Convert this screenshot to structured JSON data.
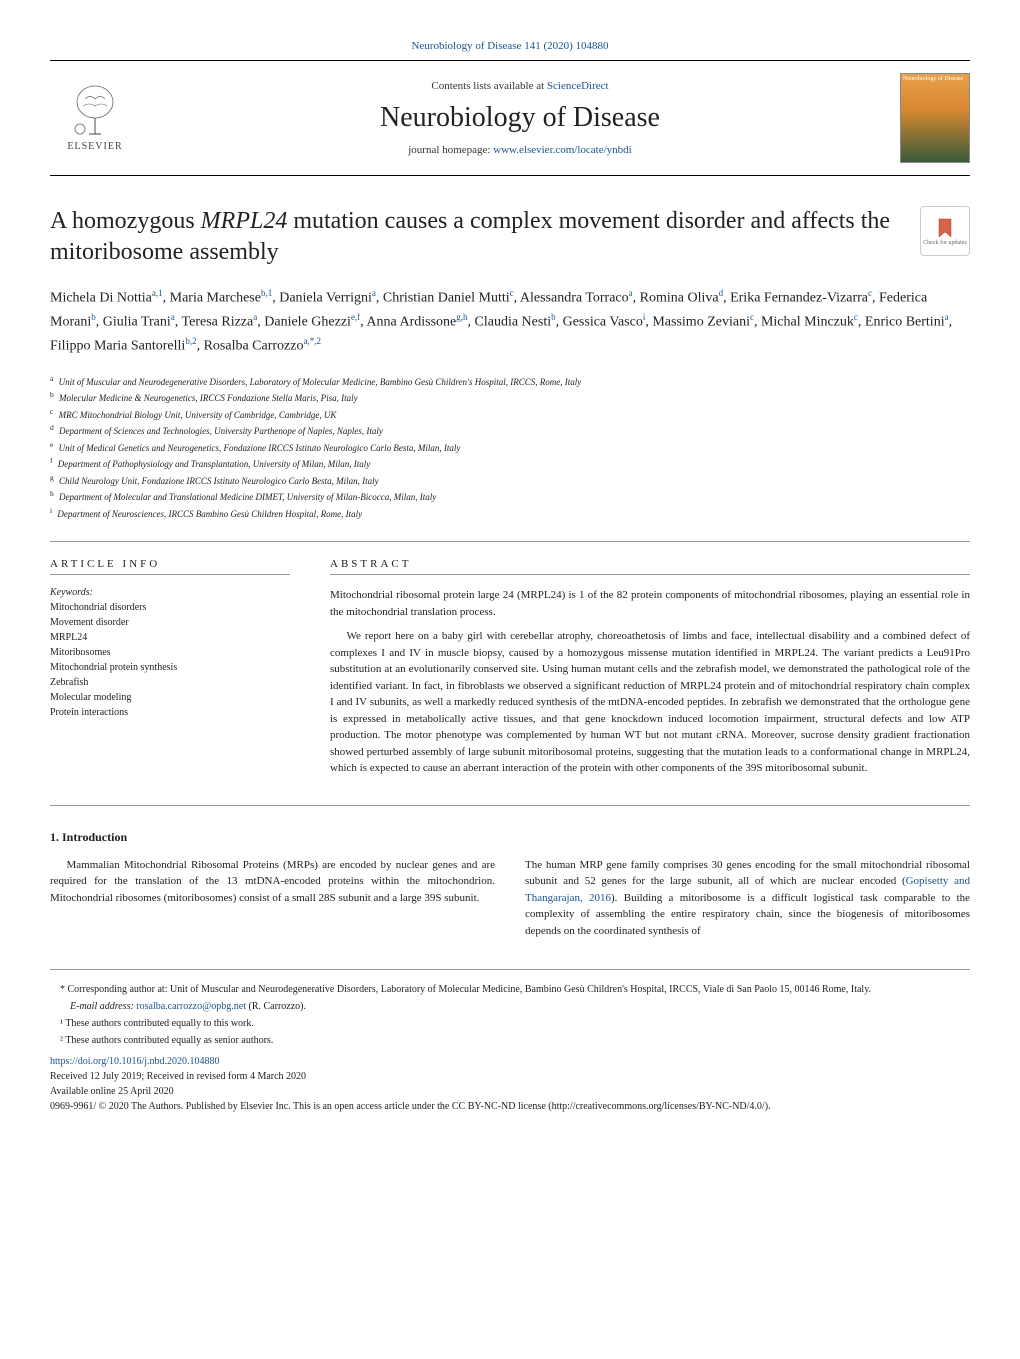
{
  "journal_ref": "Neurobiology of Disease 141 (2020) 104880",
  "header": {
    "contents_text": "Contents lists available at ",
    "contents_link": "ScienceDirect",
    "journal_name": "Neurobiology of Disease",
    "homepage_text": "journal homepage: ",
    "homepage_link": "www.elsevier.com/locate/ynbdi",
    "publisher": "ELSEVIER"
  },
  "title_a": "A homozygous ",
  "title_gene": "MRPL24",
  "title_b": " mutation causes a complex movement disorder and affects the mitoribosome assembly",
  "updates_label": "Check for updates",
  "authors_html": "Michela Di Nottia<sup>a,1</sup>, Maria Marchese<sup>b,1</sup>, Daniela Verrigni<sup>a</sup>, Christian Daniel Mutti<sup>c</sup>, Alessandra Torraco<sup>a</sup>, Romina Oliva<sup>d</sup>, Erika Fernandez-Vizarra<sup>c</sup>, Federica Morani<sup>b</sup>, Giulia Trani<sup>a</sup>, Teresa Rizza<sup>a</sup>, Daniele Ghezzi<sup>e,f</sup>, Anna Ardissone<sup>g,h</sup>, Claudia Nesti<sup>b</sup>, Gessica Vasco<sup>i</sup>, Massimo Zeviani<sup>c</sup>, Michal Minczuk<sup>c</sup>, Enrico Bertini<sup>a</sup>, Filippo Maria Santorelli<sup>b,2</sup>, Rosalba Carrozzo<sup>a,*,2</sup>",
  "affiliations": [
    {
      "key": "a",
      "text": "Unit of Muscular and Neurodegenerative Disorders, Laboratory of Molecular Medicine, Bambino Gesù Children's Hospital, IRCCS, Rome, Italy"
    },
    {
      "key": "b",
      "text": "Molecular Medicine & Neurogenetics, IRCCS Fondazione Stella Maris, Pisa, Italy"
    },
    {
      "key": "c",
      "text": "MRC Mitochondrial Biology Unit, University of Cambridge, Cambridge, UK"
    },
    {
      "key": "d",
      "text": "Department of Sciences and Technologies, University Parthenope of Naples, Naples, Italy"
    },
    {
      "key": "e",
      "text": "Unit of Medical Genetics and Neurogenetics, Fondazione IRCCS Istituto Neurologico Carlo Besta, Milan, Italy"
    },
    {
      "key": "f",
      "text": "Department of Pathophysiology and Transplantation, University of Milan, Milan, Italy"
    },
    {
      "key": "g",
      "text": "Child Neurology Unit, Fondazione IRCCS Istituto Neurologico Carlo Besta, Milan, Italy"
    },
    {
      "key": "h",
      "text": "Department of Molecular and Translational Medicine DIMET, University of Milan-Bicocca, Milan, Italy"
    },
    {
      "key": "i",
      "text": "Department of Neurosciences, IRCCS Bambino Gesù Children Hospital, Rome, Italy"
    }
  ],
  "article_info_header": "ARTICLE INFO",
  "abstract_header": "ABSTRACT",
  "keywords_label": "Keywords:",
  "keywords": [
    "Mitochondrial disorders",
    "Movement disorder",
    "MRPL24",
    "Mitoribosomes",
    "Mitochondrial protein synthesis",
    "Zebrafish",
    "Molecular modeling",
    "Protein interactions"
  ],
  "abstract": {
    "p1": "Mitochondrial ribosomal protein large 24 (MRPL24) is 1 of the 82 protein components of mitochondrial ribosomes, playing an essential role in the mitochondrial translation process.",
    "p2": "We report here on a baby girl with cerebellar atrophy, choreoathetosis of limbs and face, intellectual disability and a combined defect of complexes I and IV in muscle biopsy, caused by a homozygous missense mutation identified in MRPL24. The variant predicts a Leu91Pro substitution at an evolutionarily conserved site. Using human mutant cells and the zebrafish model, we demonstrated the pathological role of the identified variant. In fact, in fibroblasts we observed a significant reduction of MRPL24 protein and of mitochondrial respiratory chain complex I and IV subunits, as well a markedly reduced synthesis of the mtDNA-encoded peptides. In zebrafish we demonstrated that the orthologue gene is expressed in metabolically active tissues, and that gene knockdown induced locomotion impairment, structural defects and low ATP production. The motor phenotype was complemented by human WT but not mutant cRNA. Moreover, sucrose density gradient fractionation showed perturbed assembly of large subunit mitoribosomal proteins, suggesting that the mutation leads to a conformational change in MRPL24, which is expected to cause an aberrant interaction of the protein with other components of the 39S mitoribosomal subunit."
  },
  "intro": {
    "header": "1. Introduction",
    "col1": "Mammalian Mitochondrial Ribosomal Proteins (MRPs) are encoded by nuclear genes and are required for the translation of the 13 mtDNA-encoded proteins within the mitochondrion. Mitochondrial ribosomes (mitoribosomes) consist of a small 28S subunit and a large 39S subunit.",
    "col2_a": "The human MRP gene family comprises 30 genes encoding for the small mitochondrial ribosomal subunit and 52 genes for the large subunit, all of which are nuclear encoded (",
    "col2_cite": "Gopisetty and Thangarajan, 2016",
    "col2_b": "). Building a mitoribosome is a difficult logistical task comparable to the complexity of assembling the entire respiratory chain, since the biogenesis of mitoribosomes depends on the coordinated synthesis of"
  },
  "footnotes": {
    "corresponding": "* Corresponding author at: Unit of Muscular and Neurodegenerative Disorders, Laboratory of Molecular Medicine, Bambino Gesù Children's Hospital, IRCCS, Viale di San Paolo 15, 00146 Rome, Italy.",
    "email_label": "E-mail address: ",
    "email": "rosalba.carrozzo@opbg.net",
    "email_name": " (R. Carrozzo).",
    "note1": "¹ These authors contributed equally to this work.",
    "note2": "² These authors contributed equally as senior authors."
  },
  "pub": {
    "doi": "https://doi.org/10.1016/j.nbd.2020.104880",
    "received": "Received 12 July 2019; Received in revised form 4 March 2020",
    "available": "Available online 25 April 2020",
    "copyright": "0969-9961/ © 2020 The Authors. Published by Elsevier Inc. This is an open access article under the CC BY-NC-ND license (http://creativecommons.org/licenses/BY-NC-ND/4.0/)."
  }
}
